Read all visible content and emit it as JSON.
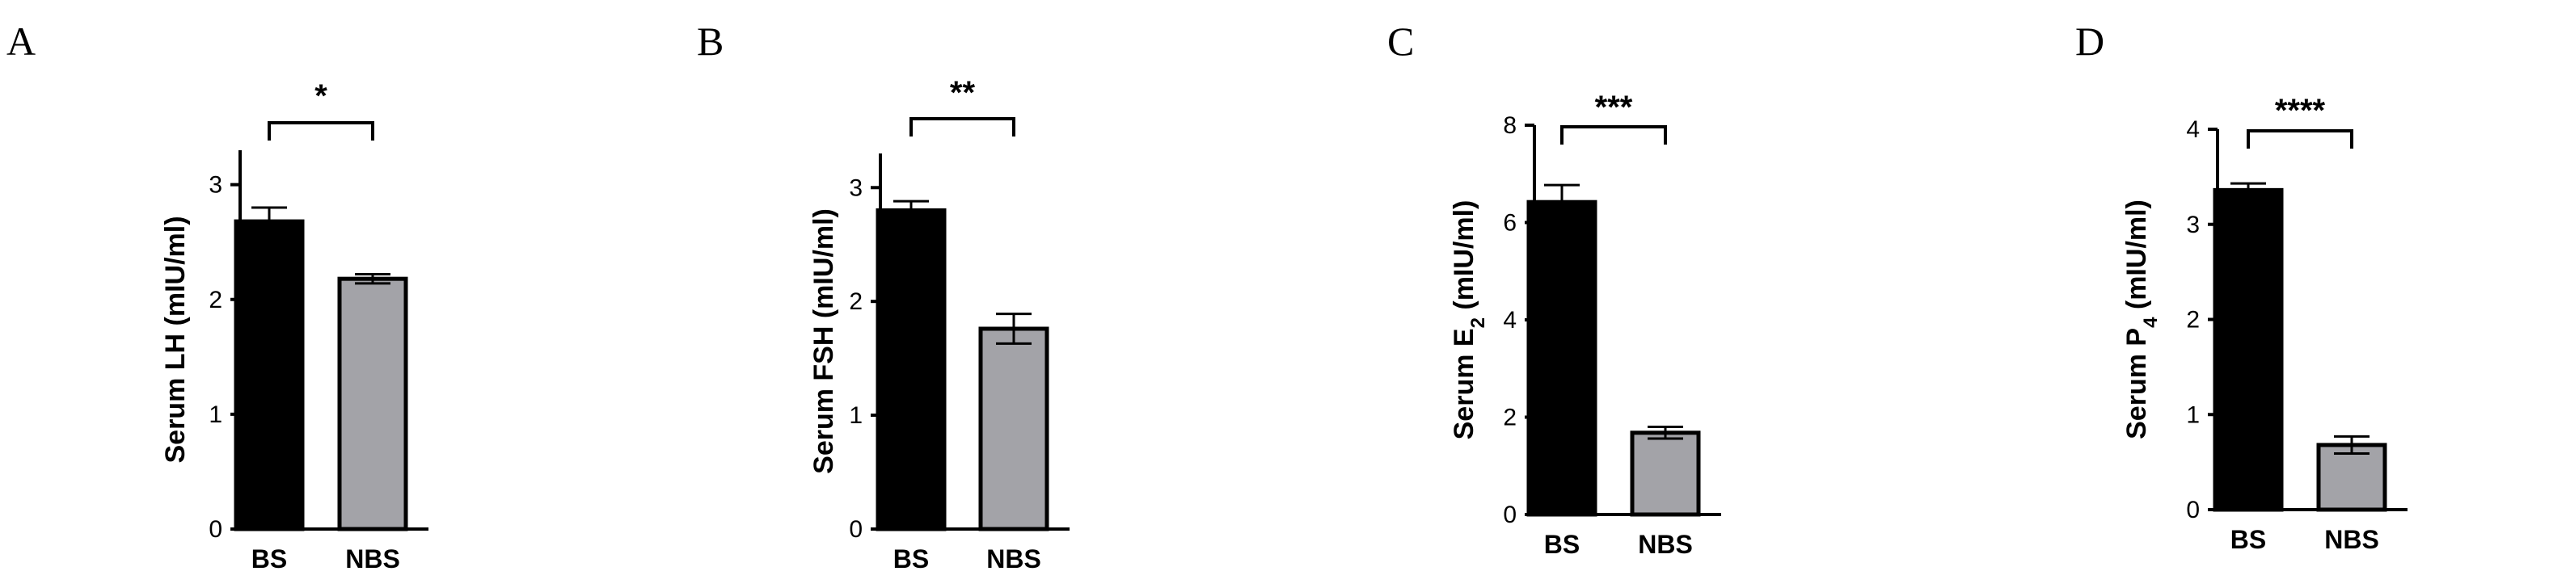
{
  "chart_data": [
    {
      "panel": "A",
      "type": "bar",
      "categories": [
        "BS",
        "NBS"
      ],
      "values": [
        2.68,
        2.18
      ],
      "errors": [
        0.12,
        0.04
      ],
      "bar_colors": [
        "#000000",
        "#a3a3a8"
      ],
      "ylabel": "Serum LH (mIU/ml)",
      "ylabel_parts": [],
      "yticks": [
        0,
        1,
        2,
        3
      ],
      "ylim": [
        0,
        3.3
      ],
      "significance": "*"
    },
    {
      "panel": "B",
      "type": "bar",
      "categories": [
        "BS",
        "NBS"
      ],
      "values": [
        2.8,
        1.76
      ],
      "errors": [
        0.08,
        0.13
      ],
      "bar_colors": [
        "#000000",
        "#a3a3a8"
      ],
      "ylabel": "Serum FSH (mIU/ml)",
      "ylabel_parts": [],
      "yticks": [
        0,
        1,
        2,
        3
      ],
      "ylim": [
        0,
        3.3
      ],
      "significance": "**"
    },
    {
      "panel": "C",
      "type": "bar",
      "categories": [
        "BS",
        "NBS"
      ],
      "values": [
        6.42,
        1.68
      ],
      "errors": [
        0.35,
        0.12
      ],
      "bar_colors": [
        "#000000",
        "#a3a3a8"
      ],
      "ylabel": "",
      "ylabel_parts": [
        {
          "text": "Serum E",
          "sub": false
        },
        {
          "text": "2",
          "sub": true
        },
        {
          "text": " (mIU/ml)",
          "sub": false
        }
      ],
      "yticks": [
        0,
        2,
        4,
        6,
        8
      ],
      "ylim": [
        0,
        8
      ],
      "significance": "***"
    },
    {
      "panel": "D",
      "type": "bar",
      "categories": [
        "BS",
        "NBS"
      ],
      "values": [
        3.36,
        0.68
      ],
      "errors": [
        0.07,
        0.09
      ],
      "bar_colors": [
        "#000000",
        "#a3a3a8"
      ],
      "ylabel": "",
      "ylabel_parts": [
        {
          "text": "Serum P",
          "sub": false
        },
        {
          "text": "4",
          "sub": true
        },
        {
          "text": " (mIU/ml)",
          "sub": false
        }
      ],
      "yticks": [
        0,
        1,
        2,
        3,
        4
      ],
      "ylim": [
        0,
        4
      ],
      "significance": "****"
    }
  ]
}
